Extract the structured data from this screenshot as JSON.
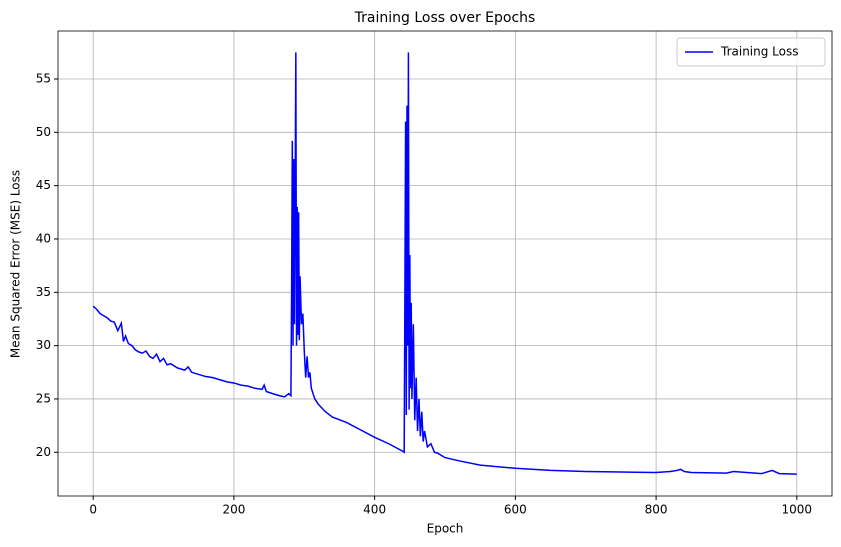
{
  "chart_data": {
    "type": "line",
    "title": "Training Loss over Epochs",
    "x_label": "Epoch",
    "y_label": "Mean Squared Error (MSE) Loss",
    "x": [
      0,
      5,
      10,
      15,
      20,
      25,
      30,
      35,
      40,
      43,
      46,
      50,
      55,
      60,
      65,
      70,
      75,
      80,
      85,
      90,
      95,
      100,
      105,
      110,
      120,
      130,
      135,
      140,
      150,
      160,
      170,
      180,
      190,
      200,
      210,
      220,
      230,
      240,
      243,
      246,
      255,
      265,
      272,
      278,
      281,
      282,
      283,
      284,
      285,
      286,
      287,
      288,
      289,
      290,
      291,
      292,
      293,
      294,
      296,
      298,
      300,
      302,
      304,
      306,
      308,
      310,
      315,
      320,
      330,
      340,
      360,
      380,
      400,
      420,
      440,
      442,
      443,
      444,
      445,
      446,
      447,
      448,
      449,
      450,
      451,
      452,
      453,
      455,
      457,
      459,
      461,
      463,
      465,
      467,
      469,
      471,
      475,
      480,
      485,
      490,
      500,
      520,
      550,
      600,
      650,
      700,
      750,
      800,
      820,
      830,
      835,
      840,
      850,
      900,
      910,
      950,
      965,
      975,
      1000
    ],
    "series": [
      {
        "name": "Training Loss",
        "color": "#0000ff",
        "values": [
          33.7,
          33.4,
          33.0,
          32.8,
          32.6,
          32.3,
          32.2,
          31.4,
          32.1,
          30.4,
          30.9,
          30.2,
          30.0,
          29.6,
          29.4,
          29.3,
          29.5,
          29.0,
          28.8,
          29.2,
          28.5,
          28.8,
          28.2,
          28.3,
          27.9,
          27.7,
          28.0,
          27.5,
          27.3,
          27.1,
          27.0,
          26.8,
          26.6,
          26.5,
          26.3,
          26.2,
          26.0,
          25.9,
          26.3,
          25.7,
          25.5,
          25.3,
          25.2,
          25.5,
          25.3,
          35,
          49.2,
          30,
          47.5,
          32,
          44,
          57.5,
          30,
          43,
          31,
          42.5,
          30.5,
          36.5,
          32,
          33,
          29.5,
          27,
          29,
          27,
          27.5,
          26,
          25,
          24.5,
          23.8,
          23.3,
          22.8,
          22.1,
          21.4,
          20.8,
          20.1,
          20.0,
          35,
          51,
          23.5,
          52.5,
          30,
          57.5,
          24,
          38.5,
          26,
          34,
          25,
          32,
          23,
          27,
          22,
          25,
          21.5,
          23.8,
          21,
          22,
          20.5,
          20.8,
          20.0,
          19.9,
          19.5,
          19.2,
          18.8,
          18.5,
          18.3,
          18.2,
          18.15,
          18.1,
          18.2,
          18.3,
          18.4,
          18.2,
          18.1,
          18.05,
          18.2,
          18.0,
          18.3,
          18.0,
          17.95
        ]
      }
    ],
    "xlim": [
      -50,
      1050
    ],
    "ylim": [
      15.9,
      59.5
    ],
    "xticks": [
      0,
      200,
      400,
      600,
      800,
      1000
    ],
    "yticks": [
      20,
      25,
      30,
      35,
      40,
      45,
      50,
      55
    ],
    "grid": true,
    "legend": "upper right"
  }
}
